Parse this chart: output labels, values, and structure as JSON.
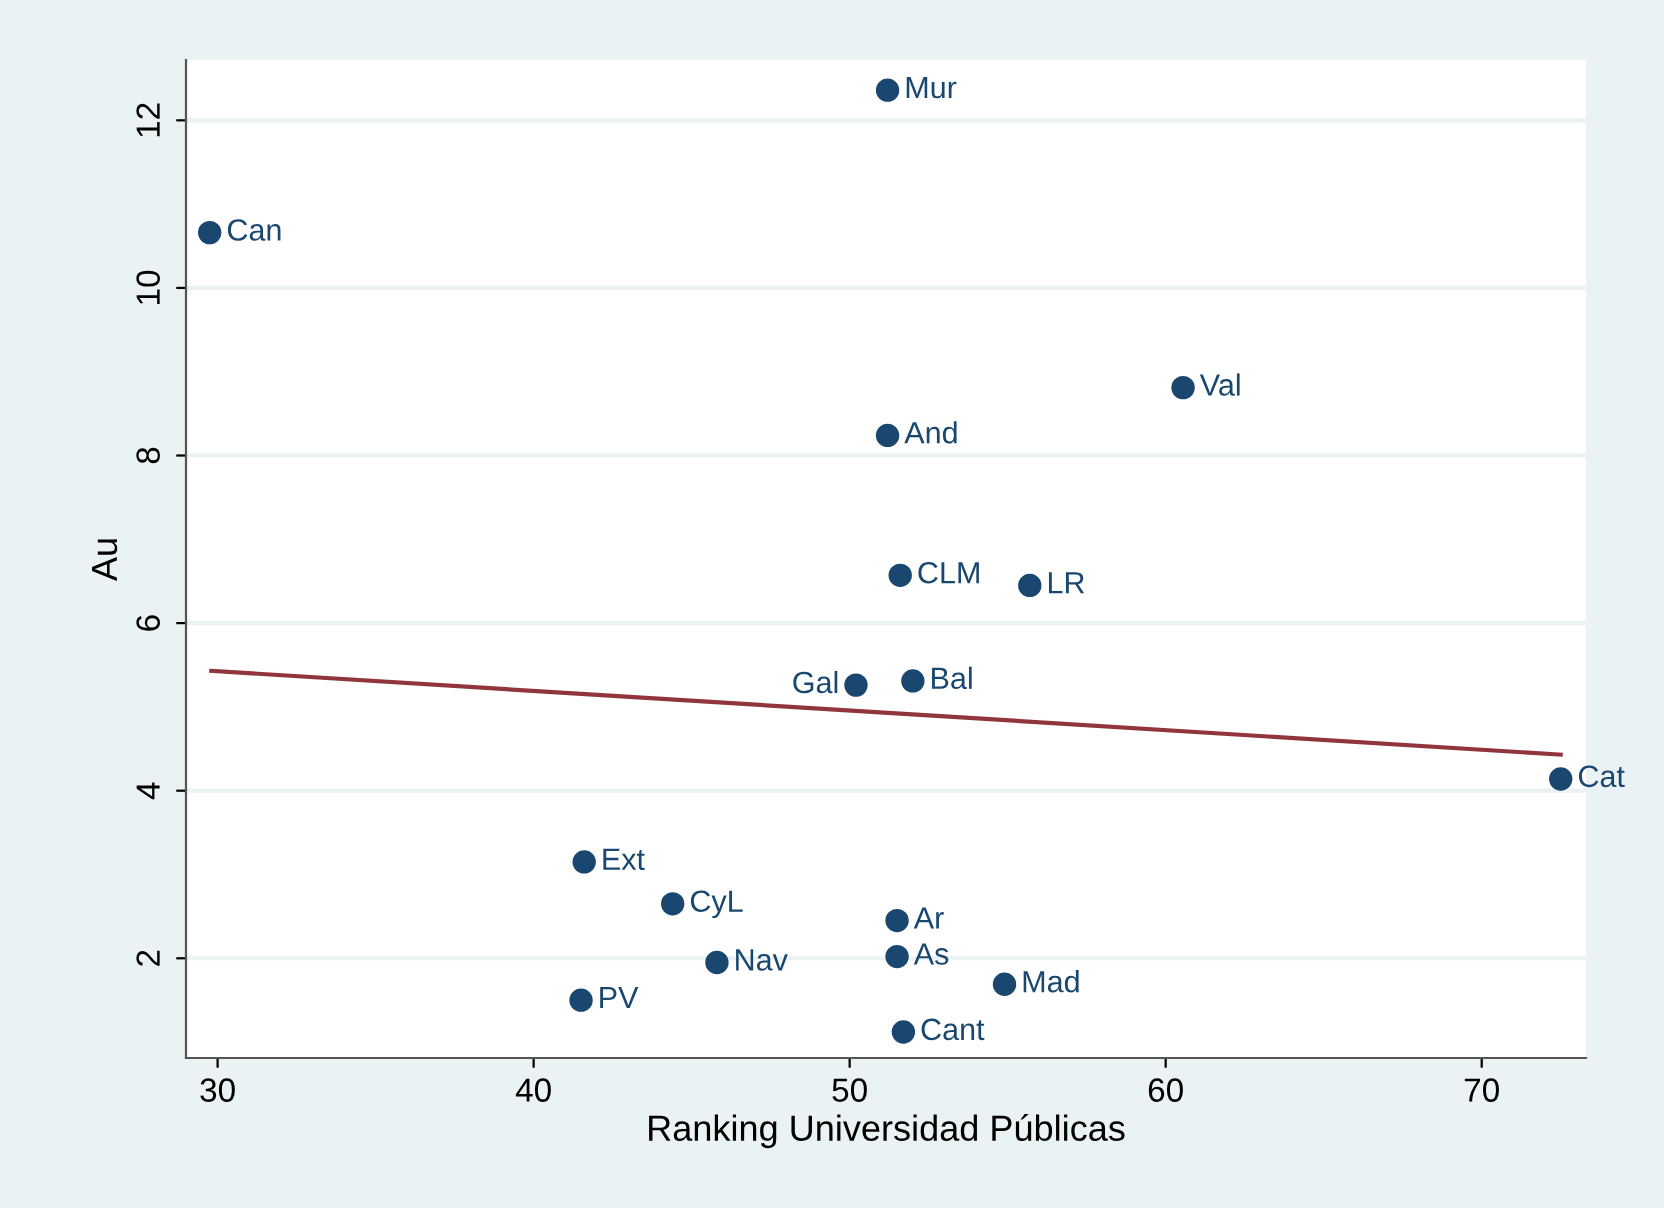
{
  "chart_data": {
    "type": "scatter",
    "xlabel": "Ranking Universidad Públicas",
    "ylabel": "Au",
    "xlim": [
      29.0,
      73.3
    ],
    "ylim": [
      0.81,
      12.72
    ],
    "xticks": [
      30,
      40,
      50,
      60,
      70
    ],
    "yticks": [
      2,
      4,
      6,
      8,
      10,
      12
    ],
    "grid": "y",
    "legend": false,
    "marker": "circle",
    "series": [
      {
        "color": "#1a476f",
        "x": [
          51.2,
          29.75,
          60.55,
          51.2,
          51.6,
          55.7,
          50.2,
          52.0,
          72.5,
          41.6,
          44.4,
          51.5,
          51.5,
          45.8,
          54.9,
          41.5,
          51.7
        ],
        "values": [
          12.36,
          10.66,
          8.81,
          8.24,
          6.57,
          6.45,
          5.26,
          5.31,
          4.14,
          3.15,
          2.65,
          2.45,
          2.02,
          1.95,
          1.69,
          1.5,
          1.12
        ]
      },
      {
        "type": "line",
        "color": "#90353b",
        "marker": "none",
        "line_style": "solid",
        "x": [
          29.8,
          72.5
        ],
        "values": [
          5.43,
          4.43
        ]
      }
    ],
    "annotations": [
      {
        "text": "Mur",
        "x": 51.2,
        "y": 12.36
      },
      {
        "text": "Can",
        "x": 29.75,
        "y": 10.66
      },
      {
        "text": "Val",
        "x": 60.55,
        "y": 8.81
      },
      {
        "text": "And",
        "x": 51.2,
        "y": 8.24
      },
      {
        "text": "CLM",
        "x": 51.6,
        "y": 6.57
      },
      {
        "text": "LR",
        "x": 55.7,
        "y": 6.45
      },
      {
        "text": "Gal",
        "x": 50.2,
        "y": 5.26
      },
      {
        "text": "Bal",
        "x": 52.0,
        "y": 5.31
      },
      {
        "text": "Cat",
        "x": 72.5,
        "y": 4.14
      },
      {
        "text": "Ext",
        "x": 41.6,
        "y": 3.15
      },
      {
        "text": "CyL",
        "x": 44.4,
        "y": 2.65
      },
      {
        "text": "Ar",
        "x": 51.5,
        "y": 2.45
      },
      {
        "text": "As",
        "x": 51.5,
        "y": 2.02
      },
      {
        "text": "Nav",
        "x": 45.8,
        "y": 1.95
      },
      {
        "text": "Mad",
        "x": 54.9,
        "y": 1.69
      },
      {
        "text": "PV",
        "x": 41.5,
        "y": 1.5
      },
      {
        "text": "Cant",
        "x": 51.7,
        "y": 1.12
      }
    ]
  }
}
